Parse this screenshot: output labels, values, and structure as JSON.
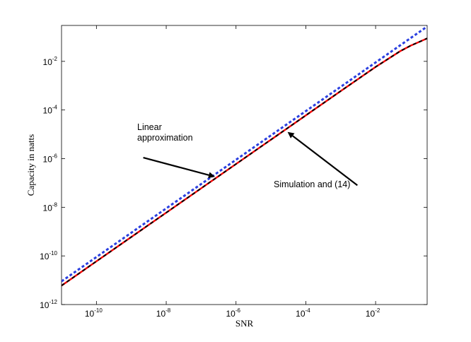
{
  "chart_data": {
    "type": "line",
    "xlabel": "SNR",
    "ylabel": "Capacity in natts",
    "xscale": "log",
    "yscale": "log",
    "xlim": [
      1e-11,
      0.3
    ],
    "ylim": [
      1e-12,
      0.3
    ],
    "xticks": [
      {
        "value": 1e-10,
        "base": "10",
        "exp": "-10"
      },
      {
        "value": 1e-08,
        "base": "10",
        "exp": "-8"
      },
      {
        "value": 1e-06,
        "base": "10",
        "exp": "-6"
      },
      {
        "value": 0.0001,
        "base": "10",
        "exp": "-4"
      },
      {
        "value": 0.01,
        "base": "10",
        "exp": "-2"
      }
    ],
    "yticks": [
      {
        "value": 1e-12,
        "base": "10",
        "exp": "-12"
      },
      {
        "value": 1e-10,
        "base": "10",
        "exp": "-10"
      },
      {
        "value": 1e-08,
        "base": "10",
        "exp": "-8"
      },
      {
        "value": 1e-06,
        "base": "10",
        "exp": "-6"
      },
      {
        "value": 0.0001,
        "base": "10",
        "exp": "-4"
      },
      {
        "value": 0.01,
        "base": "10",
        "exp": "-2"
      }
    ],
    "grid": false,
    "series": [
      {
        "color": "#ff0000",
        "style": "solid",
        "x": [
          1e-11,
          1e-09,
          1e-07,
          1e-05,
          0.001,
          0.01,
          0.05,
          0.1,
          0.2,
          0.3
        ],
        "y": [
          6e-12,
          6e-10,
          6e-08,
          6e-06,
          0.0006,
          0.0059,
          0.026,
          0.044,
          0.068,
          0.088
        ]
      },
      {
        "color": "#000000",
        "style": "dashed",
        "x": [
          1e-11,
          1e-09,
          1e-07,
          1e-05,
          0.001,
          0.01,
          0.05,
          0.1,
          0.2,
          0.3
        ],
        "y": [
          6e-12,
          6e-10,
          6e-08,
          6e-06,
          0.0006,
          0.0059,
          0.026,
          0.044,
          0.068,
          0.088
        ]
      },
      {
        "color": "#2a3fe0",
        "style": "dotted",
        "x": [
          1e-11,
          0.3
        ],
        "y": [
          9e-12,
          0.27
        ]
      }
    ],
    "annotations": [
      {
        "lines": [
          "Linear",
          "approximation"
        ],
        "arrow_from": {
          "x": 2.2e-09,
          "y": 1.1e-06
        },
        "arrow_to": {
          "x": 2.5e-07,
          "y": 1.8e-07
        }
      },
      {
        "lines": [
          "Simulation and (14)"
        ],
        "arrow_from": {
          "x": 0.003,
          "y": 8e-08
        },
        "arrow_to": {
          "x": 3e-05,
          "y": 1.25e-05
        }
      }
    ]
  }
}
